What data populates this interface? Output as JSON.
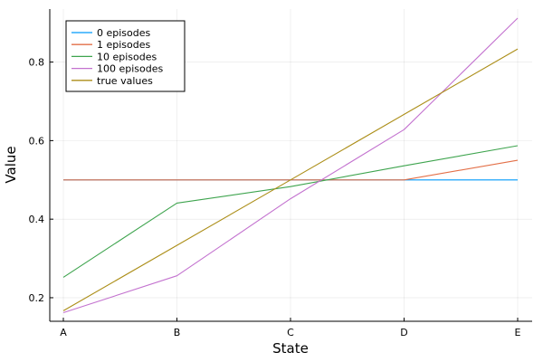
{
  "chart_data": {
    "type": "line",
    "title": "",
    "xlabel": "State",
    "ylabel": "Value",
    "categories": [
      "A",
      "B",
      "C",
      "D",
      "E"
    ],
    "ylim": [
      0.14,
      0.935
    ],
    "yticks": [
      0.2,
      0.4,
      0.6,
      0.8
    ],
    "ytick_labels": [
      "0.2",
      "0.4",
      "0.6",
      "0.8"
    ],
    "grid": true,
    "legend_position": "top-left",
    "series": [
      {
        "name": "0 episodes",
        "color": "#009AFA",
        "values": [
          0.5,
          0.5,
          0.5,
          0.5,
          0.5
        ]
      },
      {
        "name": "1 episodes",
        "color": "#E36F47",
        "values": [
          0.5,
          0.5,
          0.5,
          0.5,
          0.55
        ]
      },
      {
        "name": "10 episodes",
        "color": "#3EA44E",
        "values": [
          0.252,
          0.441,
          0.483,
          0.536,
          0.587
        ]
      },
      {
        "name": "100 episodes",
        "color": "#C372CF",
        "values": [
          0.162,
          0.256,
          0.452,
          0.628,
          0.912
        ]
      },
      {
        "name": "true values",
        "color": "#AC8E18",
        "values": [
          0.1667,
          0.3333,
          0.5,
          0.6667,
          0.8333
        ]
      }
    ]
  }
}
